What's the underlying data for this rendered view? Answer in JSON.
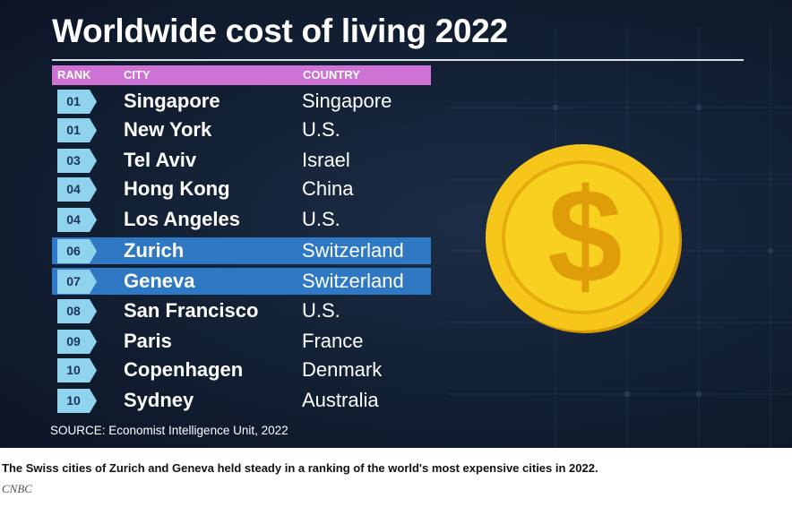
{
  "graphic": {
    "title": "Worldwide cost of living 2022",
    "headers": {
      "rank": "RANK",
      "city": "CITY",
      "country": "COUNTRY"
    },
    "rows": [
      {
        "rank": "01",
        "city": "Singapore",
        "country": "Singapore",
        "highlight": false
      },
      {
        "rank": "01",
        "city": "New York",
        "country": "U.S.",
        "highlight": false
      },
      {
        "rank": "03",
        "city": "Tel Aviv",
        "country": "Israel",
        "highlight": false
      },
      {
        "rank": "04",
        "city": "Hong Kong",
        "country": "China",
        "highlight": false
      },
      {
        "rank": "04",
        "city": "Los Angeles",
        "country": "U.S.",
        "highlight": false
      },
      {
        "rank": "06",
        "city": "Zurich",
        "country": "Switzerland",
        "highlight": true
      },
      {
        "rank": "07",
        "city": "Geneva",
        "country": "Switzerland",
        "highlight": true
      },
      {
        "rank": "08",
        "city": "San Francisco",
        "country": "U.S.",
        "highlight": false
      },
      {
        "rank": "09",
        "city": "Paris",
        "country": "France",
        "highlight": false
      },
      {
        "rank": "10",
        "city": "Copenhagen",
        "country": "Denmark",
        "highlight": false
      },
      {
        "rank": "10",
        "city": "Sydney",
        "country": "Australia",
        "highlight": false
      }
    ],
    "source": "SOURCE: Economist Intelligence Unit, 2022",
    "coin_symbol": "$",
    "colors": {
      "background": "#121f33",
      "header_bar": "#cf72d6",
      "highlight_row": "#2f79c4",
      "rank_badge": "#8fd3ee",
      "coin_face": "#f8cc14",
      "coin_rim": "#e9a90c"
    },
    "icons": [
      "dollar-coin-icon",
      "rank-arrow-badge-icon"
    ]
  },
  "caption": "The Swiss cities of Zurich and Geneva held steady in a ranking of the world's most expensive cities in 2022.",
  "credit": "CNBC"
}
